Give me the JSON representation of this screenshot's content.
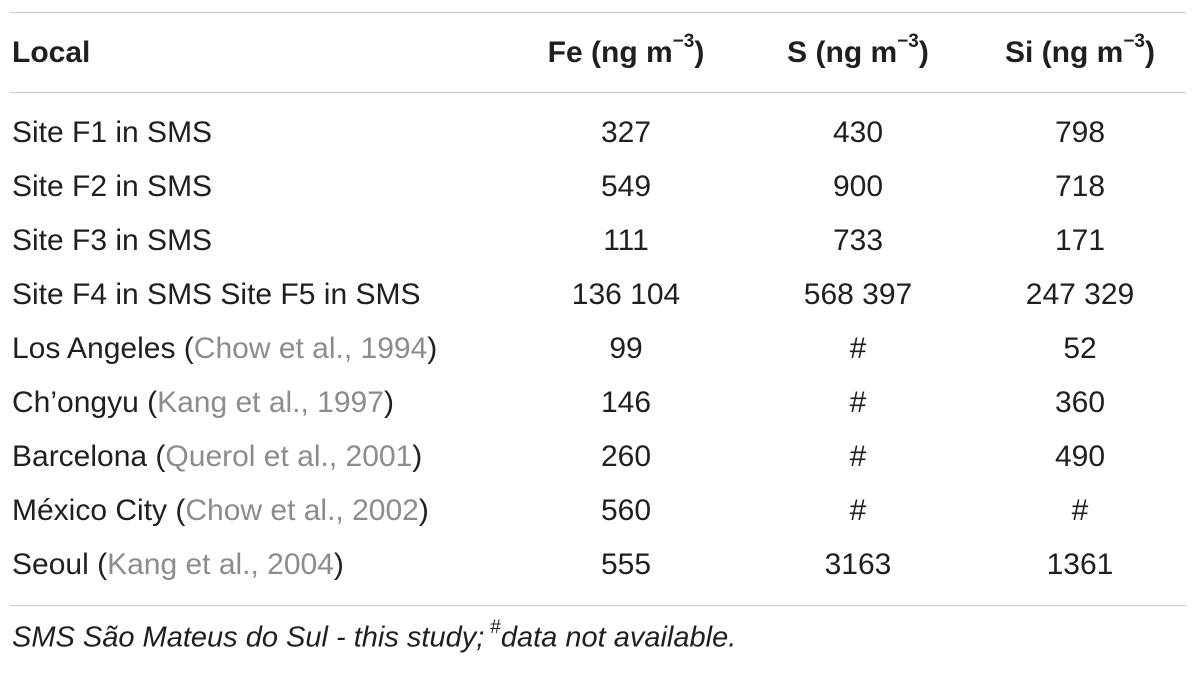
{
  "table": {
    "headers": {
      "local": "Local",
      "fe": "Fe (ng m",
      "s": "S (ng m",
      "si": "Si (ng m",
      "unit_exp": "−3",
      "close": ")"
    },
    "rows": [
      {
        "local": "Site F1 in SMS",
        "cite": "",
        "fe": "327",
        "s": "430",
        "si": "798"
      },
      {
        "local": "Site F2 in SMS",
        "cite": "",
        "fe": "549",
        "s": "900",
        "si": "718"
      },
      {
        "local": "Site F3 in SMS",
        "cite": "",
        "fe": "111",
        "s": "733",
        "si": "171"
      },
      {
        "local": "Site F4 in SMS Site F5 in SMS",
        "cite": "",
        "fe": "136  104",
        "s": "568 397",
        "si": "247 329"
      },
      {
        "local": "Los Angeles (",
        "cite": "Chow et al., 1994",
        "fe": "99",
        "s": "#",
        "si": "52"
      },
      {
        "local": "Ch’ongyu (",
        "cite": "Kang et al., 1997",
        "fe": "146",
        "s": "#",
        "si": "360"
      },
      {
        "local": "Barcelona (",
        "cite": "Querol et al., 2001",
        "fe": "260",
        "s": "#",
        "si": "490"
      },
      {
        "local": "México City (",
        "cite": "Chow et al., 2002",
        "fe": "560",
        "s": "#",
        "si": "#"
      },
      {
        "local": "Seoul (",
        "cite": "Kang et al., 2004",
        "fe": "555",
        "s": "3163",
        "si": "1361"
      }
    ]
  },
  "footnote": {
    "text_a": "SMS São Mateus do Sul - this study;",
    "mark": "#",
    "text_b": "data not available."
  }
}
